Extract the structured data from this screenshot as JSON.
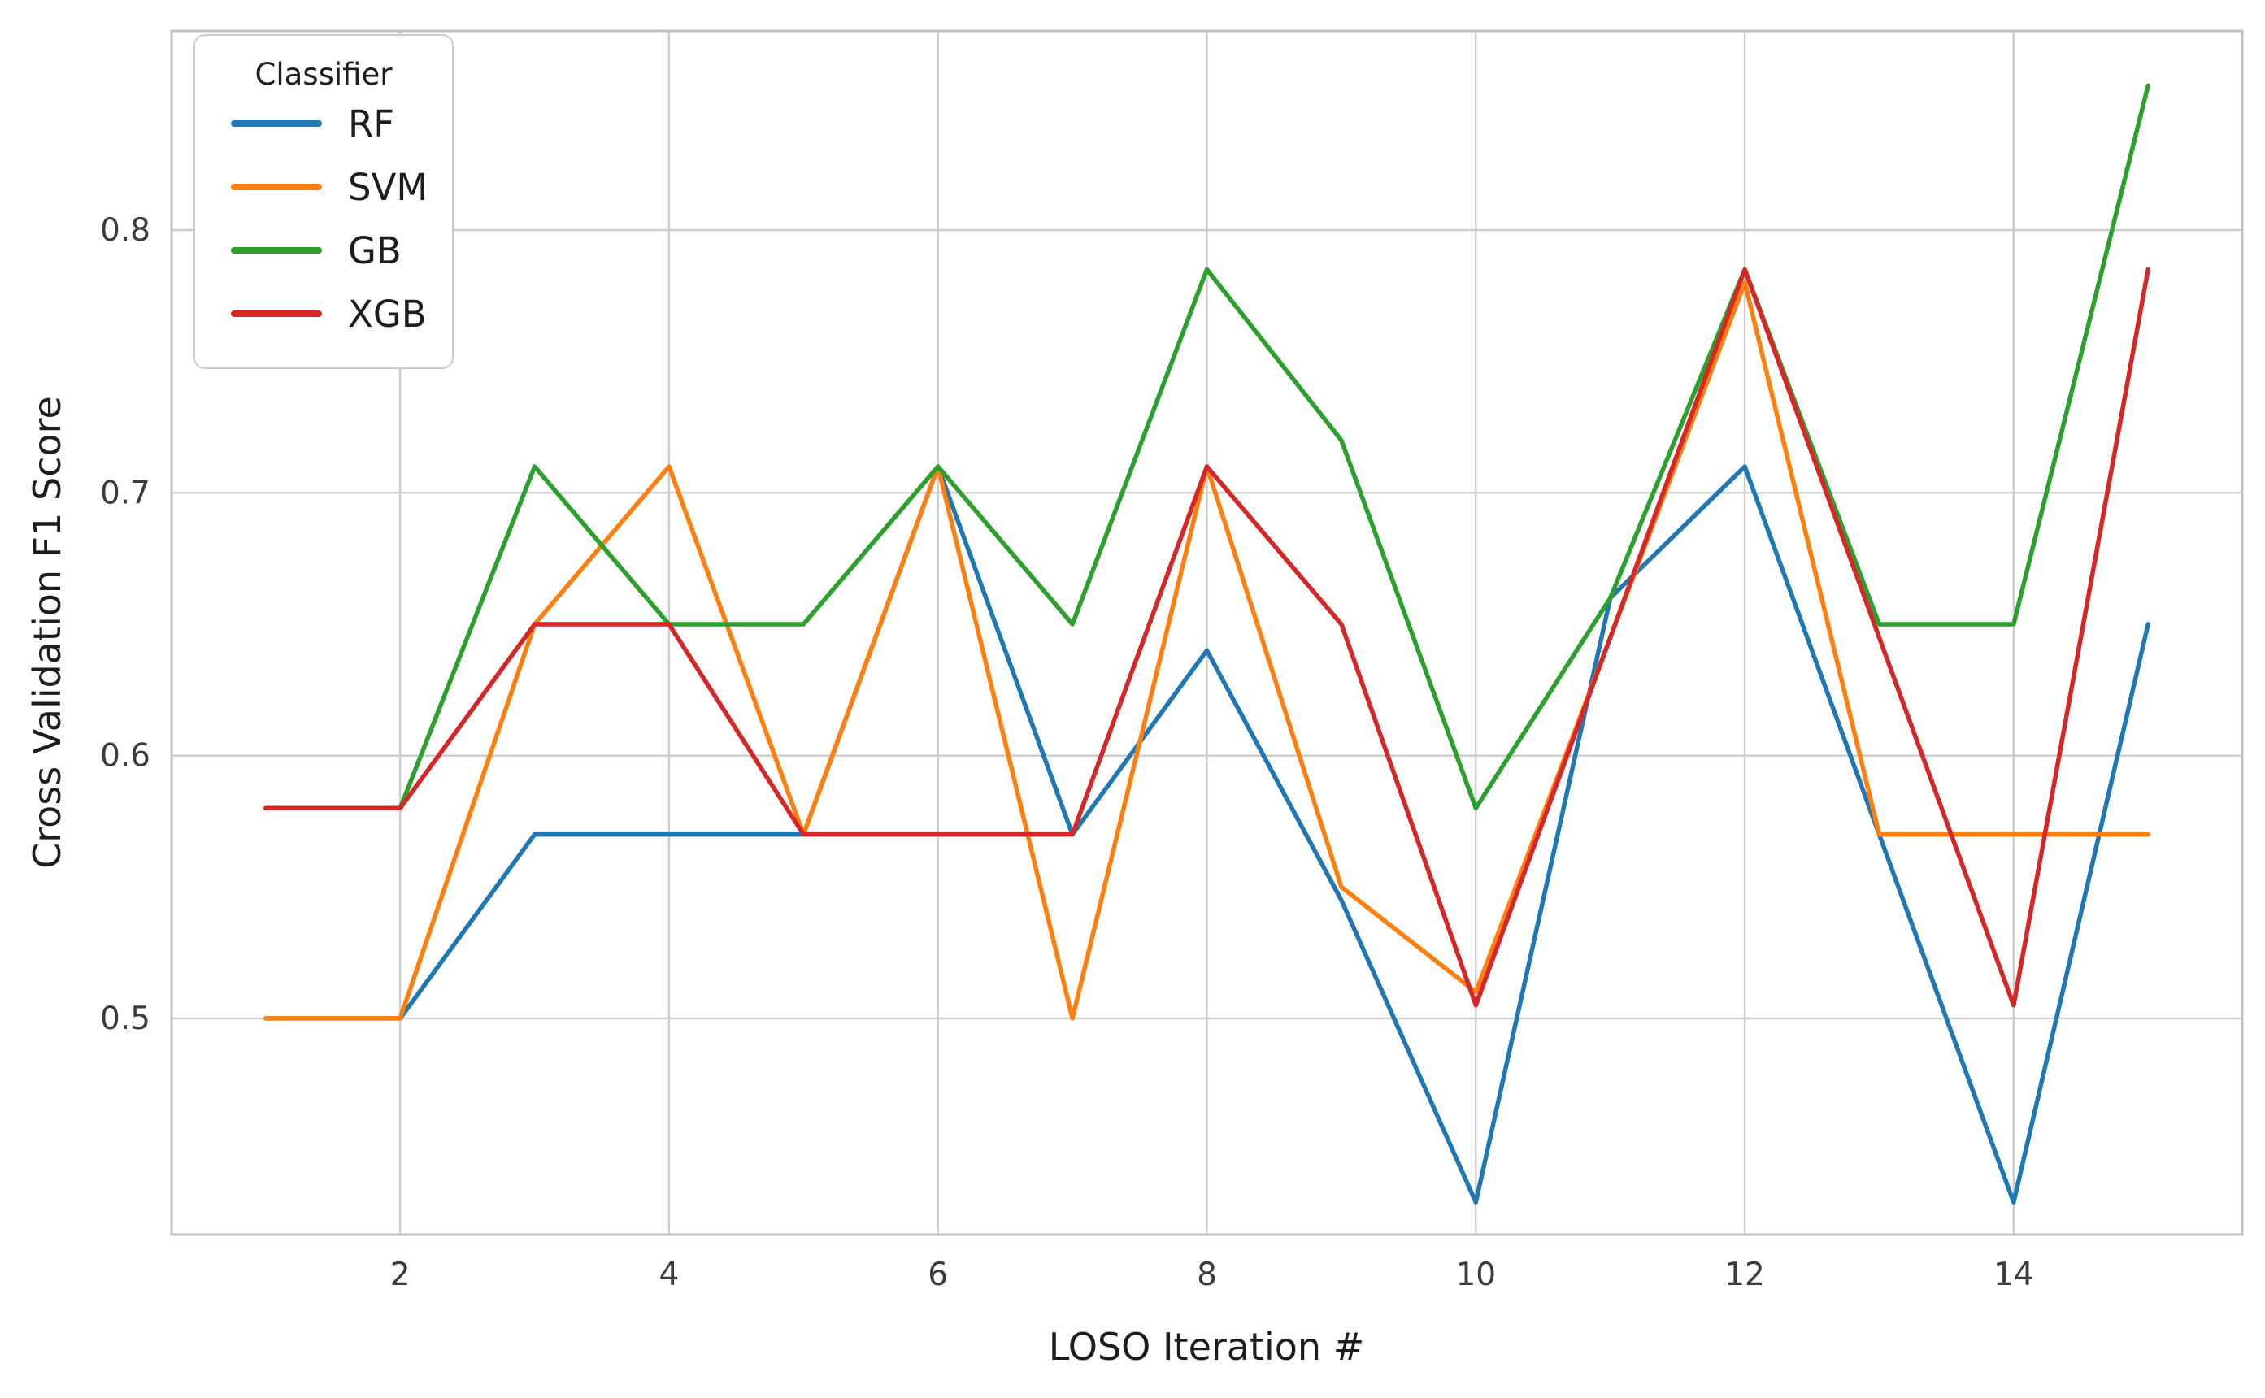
{
  "chart_data": {
    "type": "line",
    "title": "",
    "xlabel": "LOSO Iteration #",
    "ylabel": "Cross Validation F1 Score",
    "legend_title": "Classifier",
    "legend_position": "upper left",
    "grid": true,
    "background_color": "#ffffff",
    "grid_color": "#cccccc",
    "spine_color": "#c0c0c0",
    "x": [
      1,
      2,
      3,
      4,
      5,
      6,
      7,
      8,
      9,
      10,
      11,
      12,
      13,
      14,
      15
    ],
    "x_ticks": [
      2,
      4,
      6,
      8,
      10,
      12,
      14
    ],
    "y_ticks": [
      "0.5",
      "0.6",
      "0.7",
      "0.8"
    ],
    "y_tick_values": [
      0.5,
      0.6,
      0.7,
      0.8
    ],
    "xlim": [
      0.3,
      15.7
    ],
    "ylim": [
      0.4177,
      0.8758
    ],
    "series": [
      {
        "name": "RF",
        "color": "#1f77b4",
        "values": [
          0.5,
          0.5,
          0.57,
          0.57,
          0.57,
          0.71,
          0.57,
          0.64,
          0.545,
          0.43,
          0.66,
          0.71,
          0.57,
          0.43,
          0.65
        ]
      },
      {
        "name": "SVM",
        "color": "#ff7f0e",
        "values": [
          0.5,
          0.5,
          0.65,
          0.71,
          0.57,
          0.71,
          0.5,
          0.71,
          0.55,
          0.51,
          0.645,
          0.78,
          0.57,
          0.57,
          0.57
        ]
      },
      {
        "name": "GB",
        "color": "#2ca02c",
        "values": [
          0.58,
          0.58,
          0.71,
          0.65,
          0.65,
          0.71,
          0.65,
          0.785,
          0.72,
          0.58,
          0.66,
          0.785,
          0.65,
          0.65,
          0.855
        ]
      },
      {
        "name": "XGB",
        "color": "#d62728",
        "values": [
          0.58,
          0.58,
          0.65,
          0.65,
          0.57,
          0.57,
          0.57,
          0.71,
          0.65,
          0.505,
          0.645,
          0.785,
          0.645,
          0.505,
          0.785
        ]
      }
    ]
  }
}
